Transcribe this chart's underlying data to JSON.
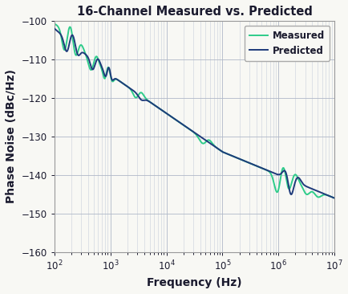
{
  "title": "16-Channel Measured vs. Predicted",
  "xlabel": "Frequency (Hz)",
  "ylabel": "Phase Noise (dBc/Hz)",
  "xlim_log": [
    2,
    7
  ],
  "ylim": [
    -160,
    -100
  ],
  "yticks": [
    -160,
    -150,
    -140,
    -130,
    -120,
    -110,
    -100
  ],
  "predicted_color": "#1e3a7a",
  "measured_color": "#2ecc8a",
  "background_color": "#f8f8f4",
  "grid_color": "#b0b8c8",
  "minor_grid_color": "#c8d0dc",
  "legend_labels": [
    "Predicted",
    "Measured"
  ],
  "title_fontsize": 10.5,
  "axis_label_fontsize": 10,
  "tick_fontsize": 8.5,
  "text_color": "#1a1a2e"
}
